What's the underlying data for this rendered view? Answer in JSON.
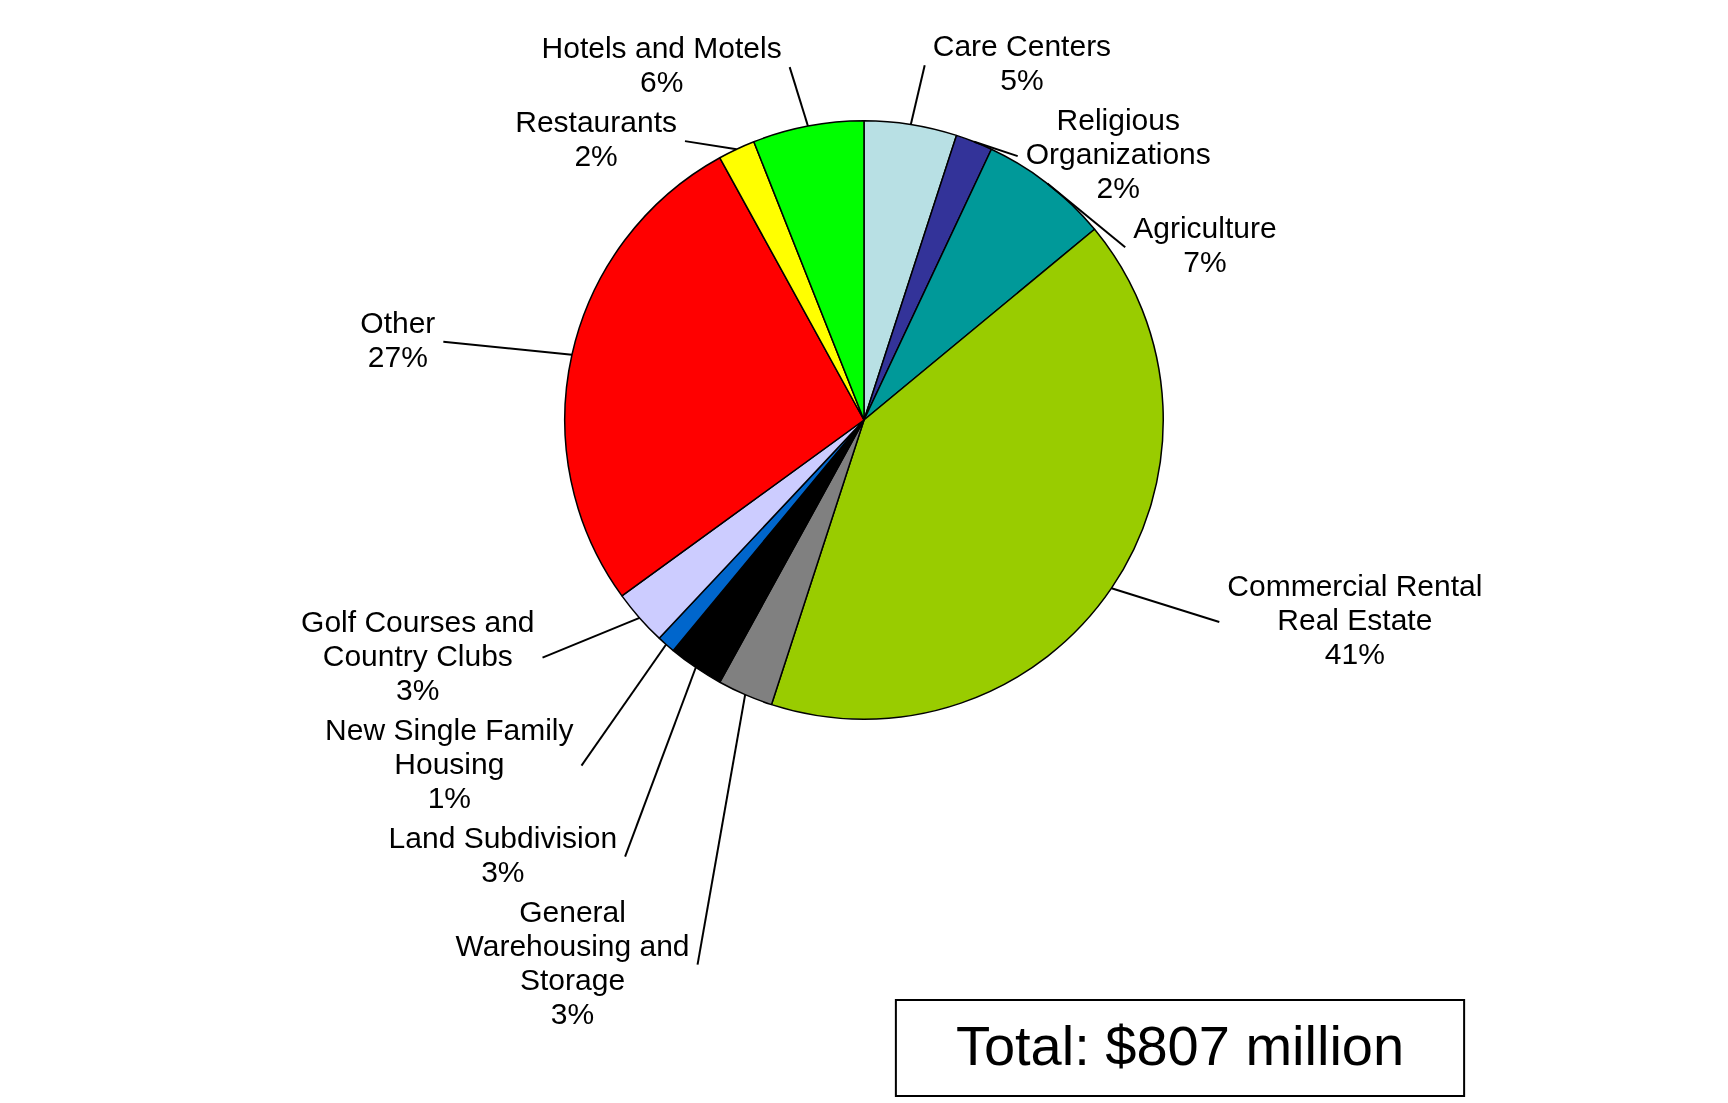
{
  "chart_data": {
    "type": "pie",
    "categories": [
      "Care Centers",
      "Religious Organizations",
      "Agriculture",
      "Commercial Rental Real Estate",
      "General Warehousing and Storage",
      "Land Subdivision",
      "New Single Family Housing",
      "Golf Courses and Country Clubs",
      "Other",
      "Restaurants",
      "Hotels and Motels"
    ],
    "values": [
      5,
      2,
      7,
      41,
      3,
      3,
      1,
      3,
      27,
      2,
      6
    ],
    "value_labels": [
      "5%",
      "2%",
      "7%",
      "41%",
      "3%",
      "3%",
      "1%",
      "3%",
      "27%",
      "2%",
      "6%"
    ],
    "colors": [
      "#b8e0e4",
      "#333399",
      "#009999",
      "#99cc00",
      "#808080",
      "#000000",
      "#0066cc",
      "#ccccff",
      "#ff0000",
      "#ffff00",
      "#00ff00"
    ],
    "annotations": [
      "Total: $807 million"
    ]
  }
}
